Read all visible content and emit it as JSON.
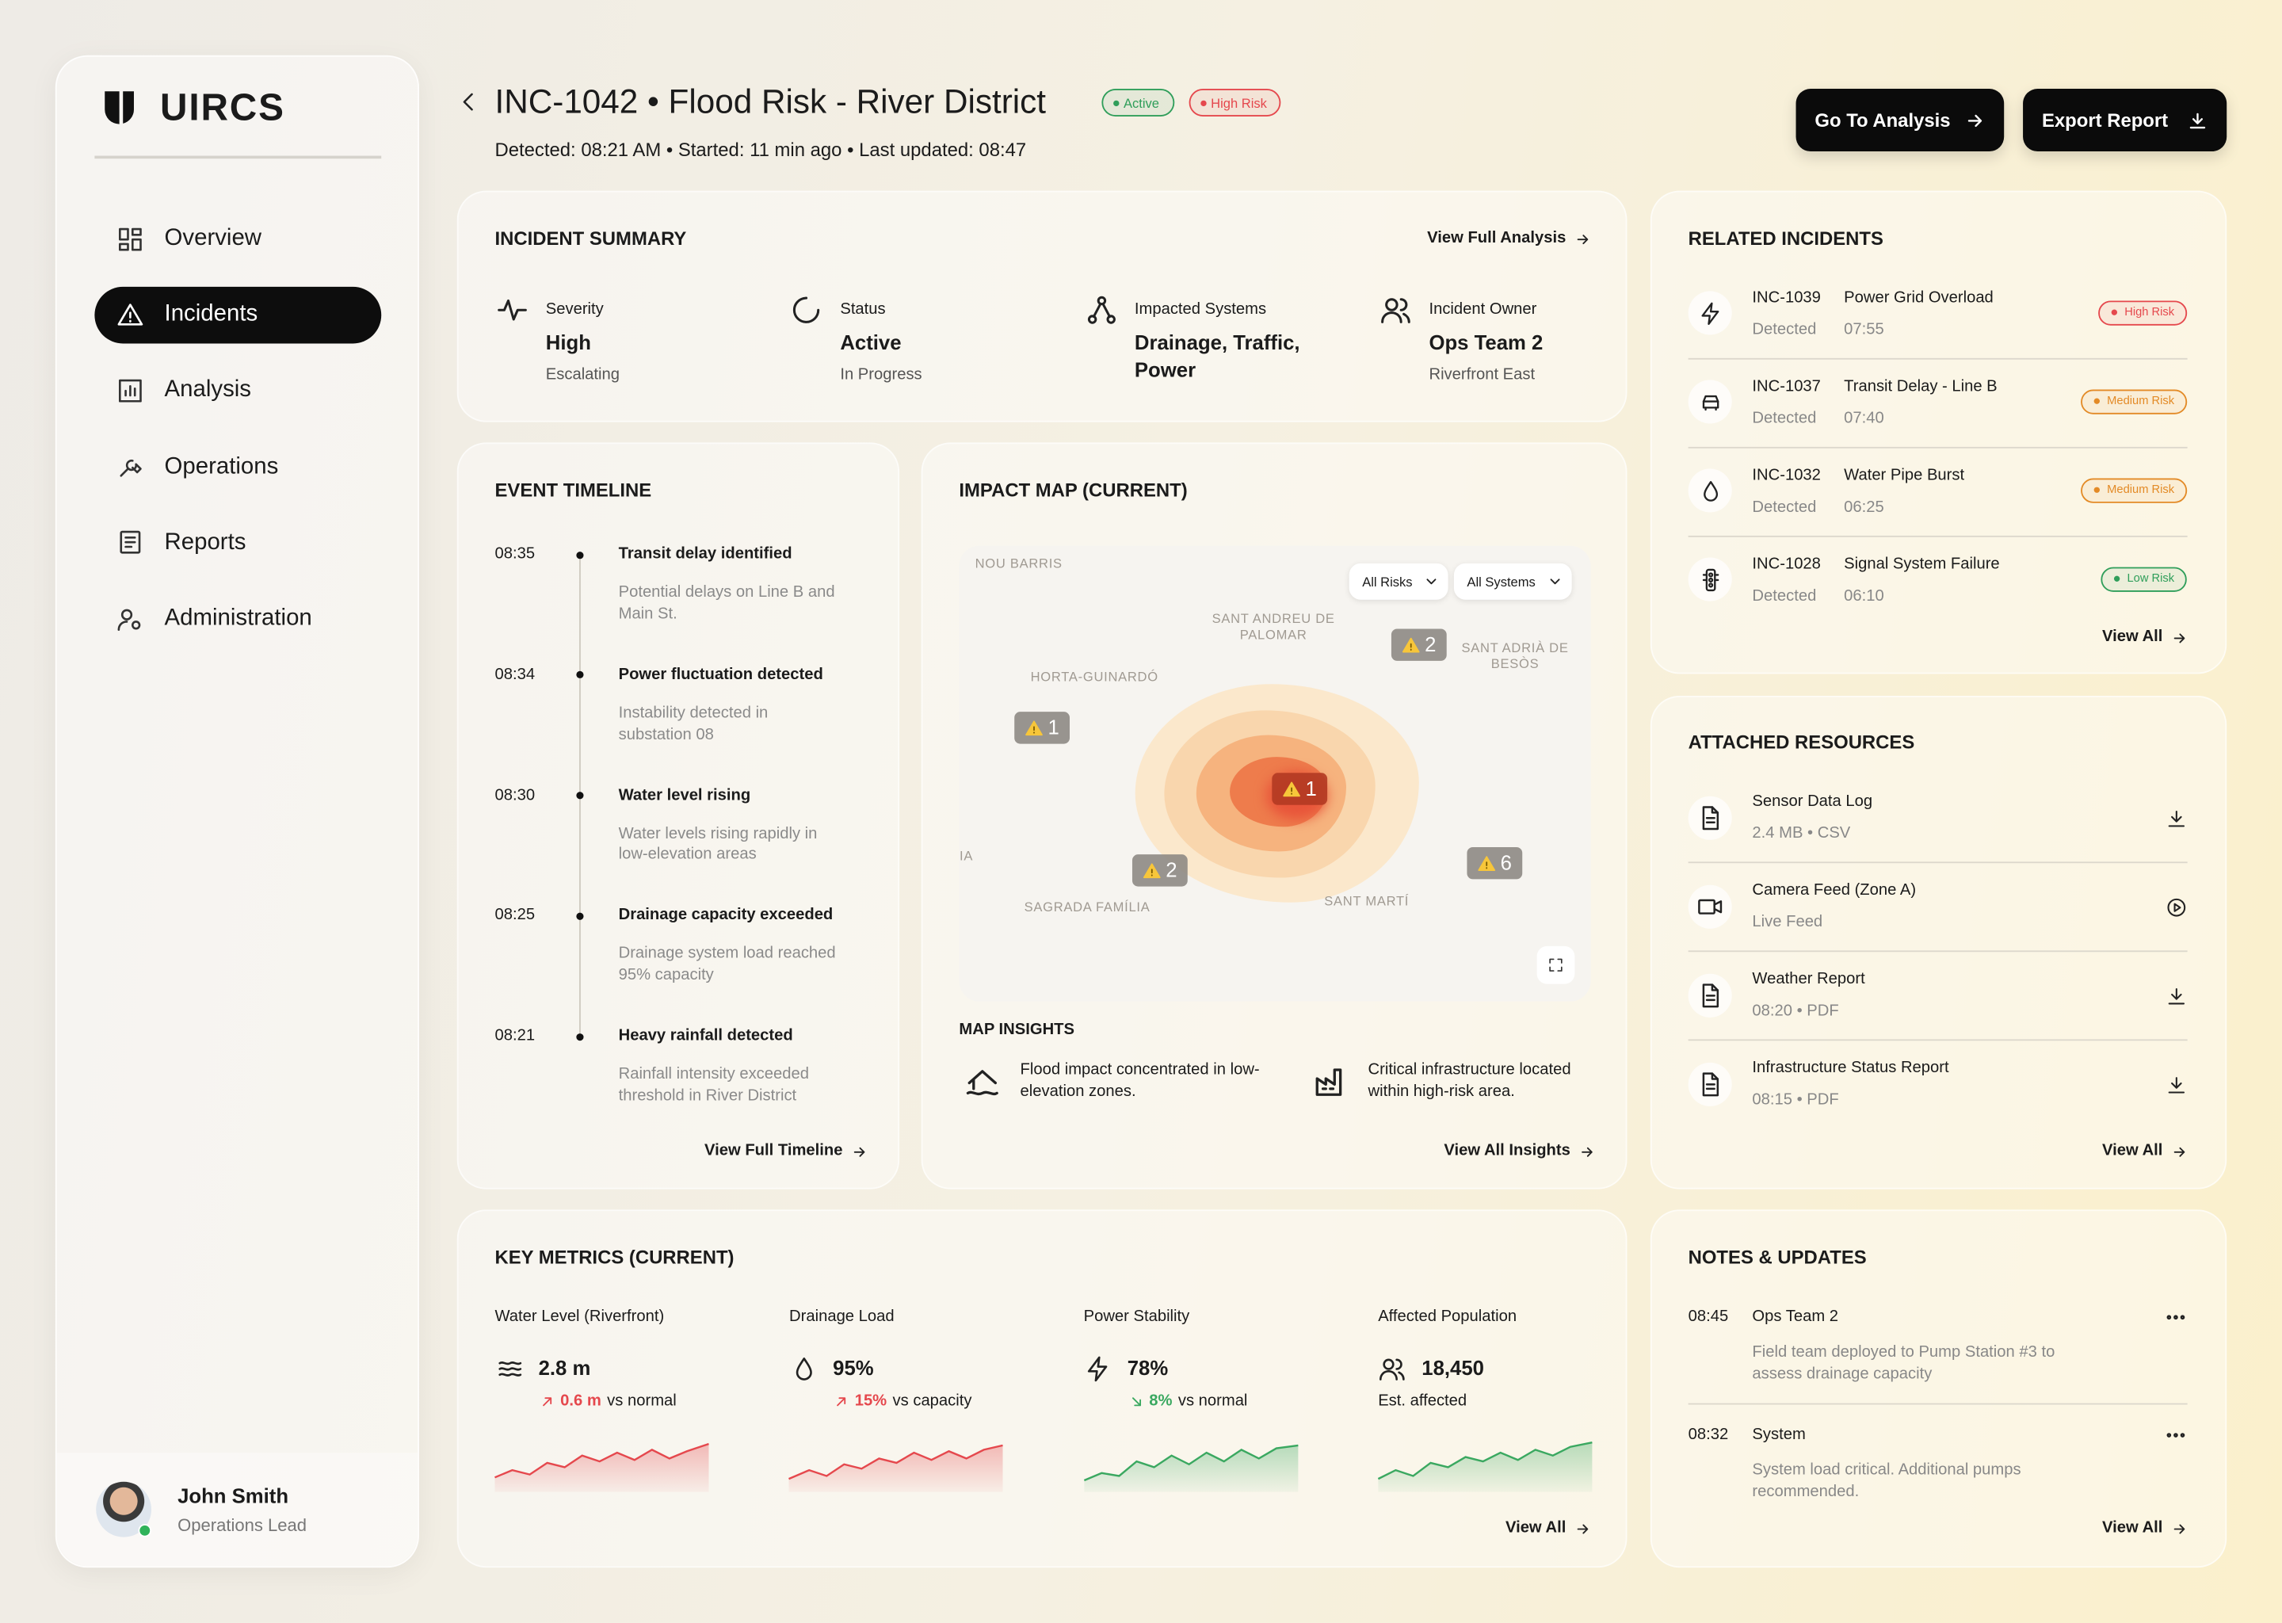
{
  "brand": "UIRCS",
  "nav": [
    "Overview",
    "Incidents",
    "Analysis",
    "Operations",
    "Reports",
    "Administration"
  ],
  "user": {
    "name": "John Smith",
    "role": "Operations Lead"
  },
  "header": {
    "title": "INC-1042 • Flood Risk - River District",
    "badges": [
      "Active",
      "High Risk"
    ],
    "meta": "Detected: 08:21 AM • Started: 11 min ago • Last updated: 08:47",
    "actions": [
      "Go To Analysis",
      "Export Report"
    ]
  },
  "summary": {
    "title": "INCIDENT SUMMARY",
    "link": "View Full Analysis",
    "items": [
      {
        "label": "Severity",
        "value": "High",
        "sub": "Escalating"
      },
      {
        "label": "Status",
        "value": "Active",
        "sub": "In Progress"
      },
      {
        "label": "Impacted Systems",
        "value": "Drainage, Traffic, Power"
      },
      {
        "label": "Incident Owner",
        "value": "Ops Team 2",
        "sub": "Riverfront East"
      }
    ]
  },
  "timeline": {
    "title": "EVENT TIMELINE",
    "link": "View Full Timeline",
    "events": [
      {
        "time": "08:35",
        "title": "Transit delay identified",
        "desc": "Potential delays on Line B and Main St."
      },
      {
        "time": "08:34",
        "title": "Power fluctuation detected",
        "desc": "Instability detected in substation 08"
      },
      {
        "time": "08:30",
        "title": "Water level rising",
        "desc": "Water levels rising rapidly in low-elevation areas"
      },
      {
        "time": "08:25",
        "title": "Drainage capacity exceeded",
        "desc": "Drainage system load reached 95% capacity"
      },
      {
        "time": "08:21",
        "title": "Heavy rainfall detected",
        "desc": "Rainfall intensity exceeded threshold in River District"
      }
    ]
  },
  "map": {
    "title": "IMPACT MAP (CURRENT)",
    "filters": [
      "All Risks",
      "All Systems"
    ],
    "places": [
      "NOU BARRIS",
      "SANT ANDREU DE PALOMAR",
      "HORTA-GUINARDÓ",
      "SANT ADRIÀ DE BESÒS",
      "SAGRADA FAMÍLIA",
      "SANT MARTÍ",
      "IA"
    ],
    "markers": [
      1,
      2,
      1,
      2,
      6
    ],
    "insights_title": "MAP INSIGHTS",
    "insights": [
      "Flood impact concentrated in low-elevation zones.",
      "Critical infrastructure located within high-risk area."
    ],
    "link": "View All Insights"
  },
  "related": {
    "title": "RELATED INCIDENTS",
    "link": "View All",
    "items": [
      {
        "id": "INC-1039",
        "name": "Power Grid Overload",
        "detected": "Detected",
        "time": "07:55",
        "risk": "High Risk",
        "color": "#e5484d"
      },
      {
        "id": "INC-1037",
        "name": "Transit Delay - Line B",
        "detected": "Detected",
        "time": "07:40",
        "risk": "Medium Risk",
        "color": "#e38a26"
      },
      {
        "id": "INC-1032",
        "name": "Water Pipe Burst",
        "detected": "Detected",
        "time": "06:25",
        "risk": "Medium Risk",
        "color": "#e38a26"
      },
      {
        "id": "INC-1028",
        "name": "Signal System Failure",
        "detected": "Detected",
        "time": "06:10",
        "risk": "Low Risk",
        "color": "#2f9e5a"
      }
    ]
  },
  "resources": {
    "title": "ATTACHED RESOURCES",
    "link": "View All",
    "items": [
      {
        "name": "Sensor Data Log",
        "sub": "2.4 MB • CSV"
      },
      {
        "name": "Camera Feed (Zone A)",
        "sub": "Live Feed"
      },
      {
        "name": "Weather Report",
        "sub": "08:20 • PDF"
      },
      {
        "name": "Infrastructure Status Report",
        "sub": "08:15 • PDF"
      }
    ]
  },
  "metrics": {
    "title": "KEY METRICS (CURRENT)",
    "link": "View All",
    "items": [
      {
        "label": "Water Level (Riverfront)",
        "value": "2.8 m",
        "change": "0.6 m",
        "note": "vs normal",
        "color": "#e5484d"
      },
      {
        "label": "Drainage Load",
        "value": "95%",
        "change": "15%",
        "note": "vs capacity",
        "color": "#e5484d"
      },
      {
        "label": "Power Stability",
        "value": "78%",
        "change": "8%",
        "note": "vs normal",
        "color": "#3aa860"
      },
      {
        "label": "Affected Population",
        "value": "18,450",
        "note": "Est. affected",
        "color": "#3aa860"
      }
    ]
  },
  "notes": {
    "title": "NOTES & UPDATES",
    "link": "View All",
    "items": [
      {
        "time": "08:45",
        "author": "Ops Team 2",
        "text": "Field team deployed to Pump Station #3 to assess drainage capacity"
      },
      {
        "time": "08:32",
        "author": "System",
        "text": "System load critical. Additional pumps recommended."
      }
    ]
  }
}
